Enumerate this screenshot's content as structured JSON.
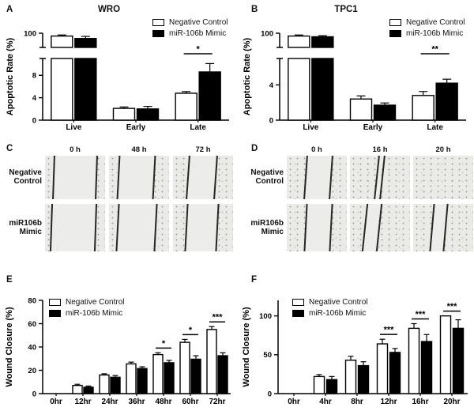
{
  "colors": {
    "background": "#ffffff",
    "bar_negative_control": "#ffffff",
    "bar_mimic": "#000000",
    "axis": "#000000",
    "micrograph_bg": "#eaeae7",
    "scratch_line": "#262626"
  },
  "panels": {
    "A": {
      "letter": "A",
      "title": "WRO",
      "ylabel": "Apoptotic Rate (%)",
      "legend": [
        "Negative Control",
        "miR-106b Mimic"
      ]
    },
    "B": {
      "letter": "B",
      "title": "TPC1",
      "ylabel": "Apoptotic Rate (%)",
      "legend": [
        "Negative Control",
        "miR-106b Mimic"
      ]
    },
    "C": {
      "letter": "C",
      "col_headers": [
        "0 h",
        "48 h",
        "72 h"
      ],
      "row_headers": [
        [
          "Negative",
          "Control"
        ],
        [
          "miR106b",
          "Mimic"
        ]
      ],
      "images": [
        [
          {
            "lines": [
              13,
              84
            ],
            "tilt": 2
          },
          {
            "lines": [
              15,
              74
            ],
            "tilt": 3
          },
          {
            "lines": [
              24,
              70
            ],
            "tilt": 4
          }
        ],
        [
          {
            "lines": [
              9,
              83
            ],
            "tilt": 2
          },
          {
            "lines": [
              13,
              76
            ],
            "tilt": 3
          },
          {
            "lines": [
              21,
              73
            ],
            "tilt": 3
          }
        ]
      ]
    },
    "D": {
      "letter": "D",
      "col_headers": [
        "0 h",
        "16 h",
        "20 h"
      ],
      "row_headers": [
        [
          "Negative",
          "Control"
        ],
        [
          "miR106b",
          "Mimic"
        ]
      ],
      "images": [
        [
          {
            "lines": [
              30,
              72
            ],
            "tilt": 4
          },
          {
            "lines": [
              44,
              52
            ],
            "tilt": 6
          },
          {
            "lines": [],
            "tilt": 0
          }
        ],
        [
          {
            "lines": [
              30,
              73
            ],
            "tilt": 3
          },
          {
            "lines": [
              24,
              47
            ],
            "tilt": 6
          },
          {
            "lines": [
              30,
              53
            ],
            "tilt": 5
          }
        ]
      ]
    },
    "E": {
      "letter": "E",
      "ylabel": "Wound Closure (%)",
      "legend": [
        "Negative Control",
        "miR-106b Mimic"
      ]
    },
    "F": {
      "letter": "F",
      "ylabel": "Wound Closure (%)",
      "legend": [
        "Negative Control",
        "miR-106b Mimic"
      ]
    }
  },
  "chart_data": [
    {
      "id": "A",
      "type": "bar",
      "title": "WRO",
      "ylabel": "Apoptotic Rate (%)",
      "broken_axis": true,
      "bottom_ticks": [
        0,
        4,
        8
      ],
      "bottom_max": 11,
      "top_ticks": [
        100
      ],
      "top_range": [
        60,
        100
      ],
      "categories": [
        "Live",
        "Early",
        "Late"
      ],
      "series": [
        {
          "name": "Negative Control",
          "fill": "#ffffff",
          "values": [
            92,
            2.1,
            4.8
          ],
          "errors": [
            3,
            0.25,
            0.3
          ]
        },
        {
          "name": "miR-106b Mimic",
          "fill": "#000000",
          "values": [
            85,
            2.0,
            8.6
          ],
          "errors": [
            6,
            0.45,
            1.5
          ]
        }
      ],
      "significance": [
        {
          "category": "Late",
          "label": "*"
        }
      ]
    },
    {
      "id": "B",
      "type": "bar",
      "title": "TPC1",
      "ylabel": "Apoptotic Rate (%)",
      "broken_axis": true,
      "bottom_ticks": [
        0,
        4
      ],
      "bottom_max": 7,
      "top_ticks": [
        100
      ],
      "top_range": [
        60,
        100
      ],
      "categories": [
        "Live",
        "Early",
        "Late"
      ],
      "series": [
        {
          "name": "Negative Control",
          "fill": "#ffffff",
          "values": [
            92,
            2.4,
            2.8
          ],
          "errors": [
            3,
            0.35,
            0.45
          ]
        },
        {
          "name": "miR-106b Mimic",
          "fill": "#000000",
          "values": [
            90,
            1.7,
            4.2
          ],
          "errors": [
            3,
            0.25,
            0.45
          ]
        }
      ],
      "significance": [
        {
          "category": "Late",
          "label": "**"
        }
      ]
    },
    {
      "id": "E",
      "type": "bar",
      "ylabel": "Wound Closure (%)",
      "ticks": [
        0,
        20,
        40,
        60,
        80
      ],
      "ylim": [
        0,
        80
      ],
      "categories": [
        "0hr",
        "12hr",
        "24hr",
        "36hr",
        "48hr",
        "60hr",
        "72hr"
      ],
      "series": [
        {
          "name": "Negative Control",
          "fill": "#ffffff",
          "values": [
            0,
            7,
            16,
            25.5,
            33.5,
            44,
            55
          ],
          "errors": [
            0,
            1,
            1,
            1.5,
            1.5,
            2.5,
            2.5
          ]
        },
        {
          "name": "miR-106b Mimic",
          "fill": "#000000",
          "values": [
            0,
            5.5,
            14,
            21.5,
            26.5,
            29.5,
            32.5
          ],
          "errors": [
            0,
            1,
            1.5,
            1.5,
            2,
            3,
            2.5
          ]
        }
      ],
      "significance": [
        {
          "category": "48hr",
          "label": "*"
        },
        {
          "category": "60hr",
          "label": "*"
        },
        {
          "category": "72hr",
          "label": "***"
        }
      ]
    },
    {
      "id": "F",
      "type": "bar",
      "ylabel": "Wound Closure (%)",
      "ticks": [
        0,
        50,
        100
      ],
      "ylim": [
        0,
        120
      ],
      "categories": [
        "0hr",
        "4hr",
        "8hr",
        "12hr",
        "16hr",
        "20hr"
      ],
      "series": [
        {
          "name": "Negative Control",
          "fill": "#ffffff",
          "values": [
            0,
            22,
            43,
            64,
            84,
            100
          ],
          "errors": [
            0,
            2.5,
            5,
            6,
            6,
            0
          ]
        },
        {
          "name": "miR-106b Mimic",
          "fill": "#000000",
          "values": [
            0,
            18,
            36,
            53,
            67,
            84
          ],
          "errors": [
            0,
            4,
            5,
            5,
            9,
            11
          ]
        }
      ],
      "significance": [
        {
          "category": "12hr",
          "label": "***"
        },
        {
          "category": "16hr",
          "label": "***"
        },
        {
          "category": "20hr",
          "label": "***"
        }
      ]
    }
  ]
}
